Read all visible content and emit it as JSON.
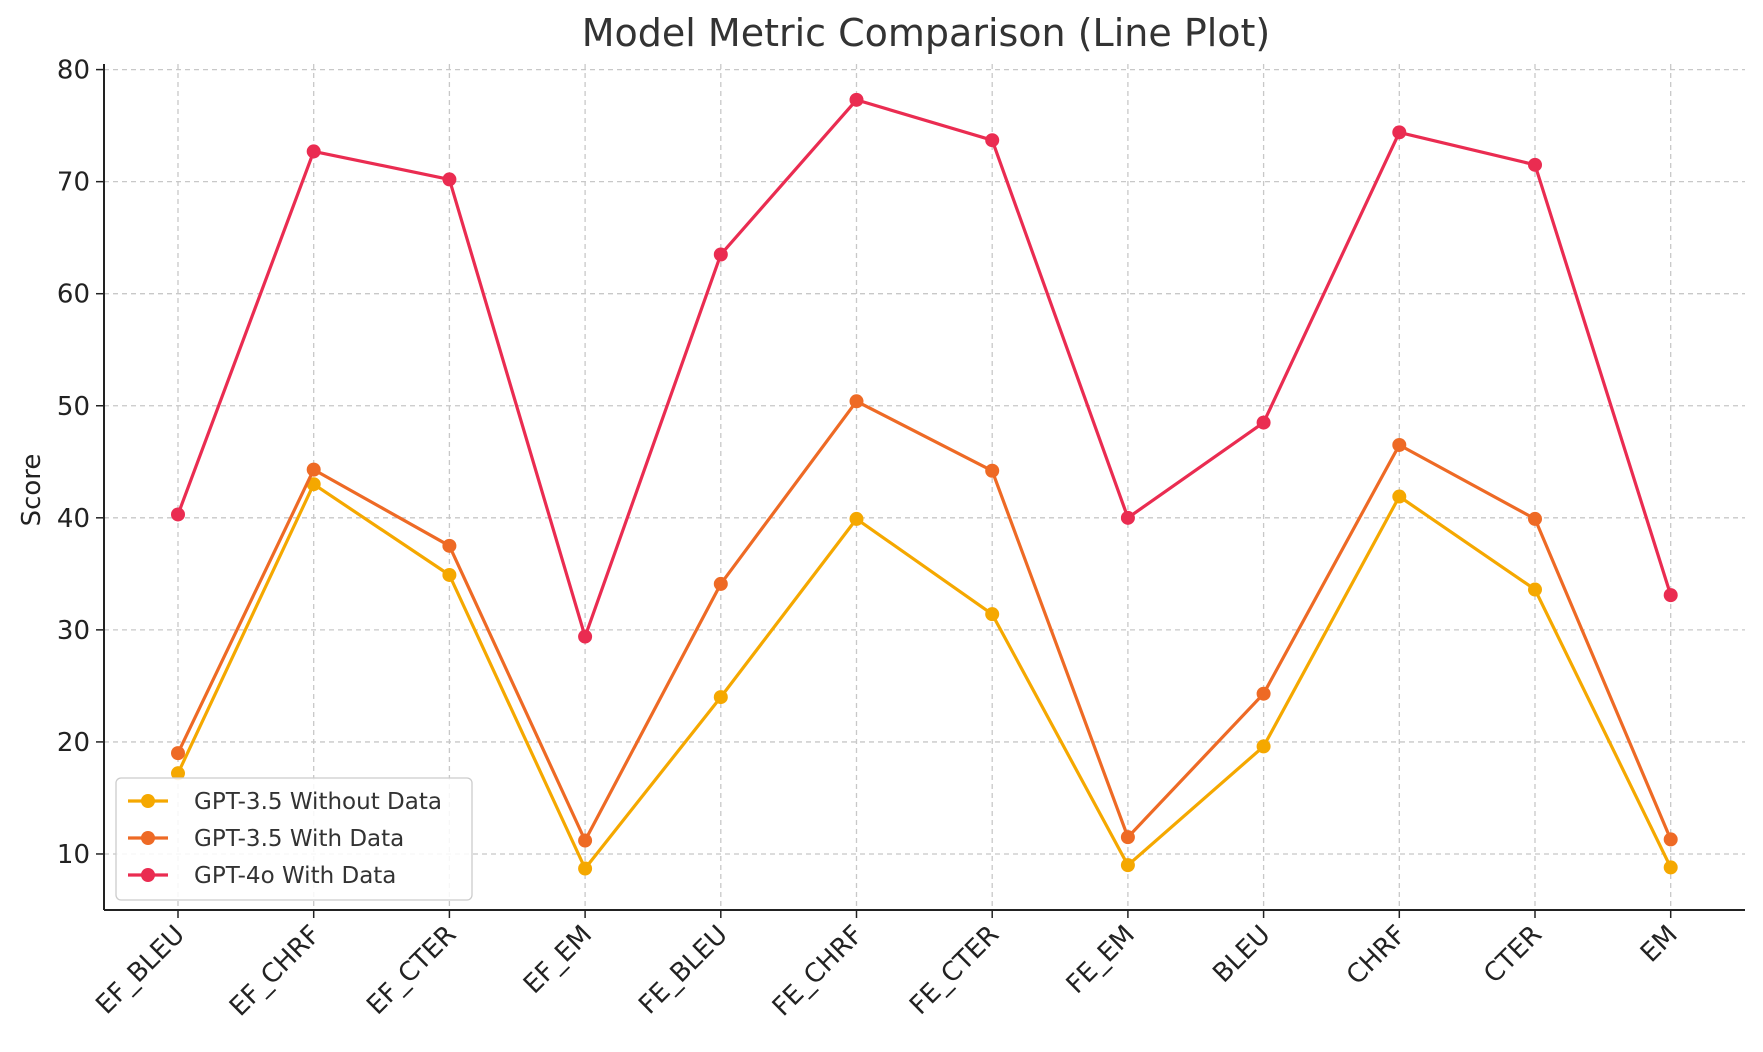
{
  "chart_data": {
    "type": "line",
    "title": "Model Metric Comparison (Line Plot)",
    "xlabel": "",
    "ylabel": "Score",
    "categories": [
      "EF_BLEU",
      "EF_CHRF",
      "EF_CTER",
      "EF_EM",
      "FE_BLEU",
      "FE_CHRF",
      "FE_CTER",
      "FE_EM",
      "BLEU",
      "CHRF",
      "CTER",
      "EM"
    ],
    "ylim": [
      5,
      80.5
    ],
    "yticks": [
      10,
      20,
      30,
      40,
      50,
      60,
      70,
      80
    ],
    "grid": true,
    "legend_position": "lower-left",
    "series": [
      {
        "name": "GPT-3.5 Without Data",
        "color": "#f5a800",
        "values": [
          17.2,
          43.0,
          34.9,
          8.7,
          24.0,
          39.9,
          31.4,
          9.0,
          19.6,
          41.9,
          33.6,
          8.8
        ]
      },
      {
        "name": "GPT-3.5 With Data",
        "color": "#ee6a25",
        "values": [
          19.0,
          44.3,
          37.5,
          11.2,
          34.1,
          50.4,
          44.2,
          11.5,
          24.3,
          46.5,
          39.9,
          11.3
        ]
      },
      {
        "name": "GPT-4o With Data",
        "color": "#ea2c51",
        "values": [
          40.3,
          72.7,
          70.2,
          29.4,
          63.5,
          77.3,
          73.7,
          40.0,
          48.5,
          74.4,
          71.5,
          33.1
        ]
      }
    ]
  }
}
